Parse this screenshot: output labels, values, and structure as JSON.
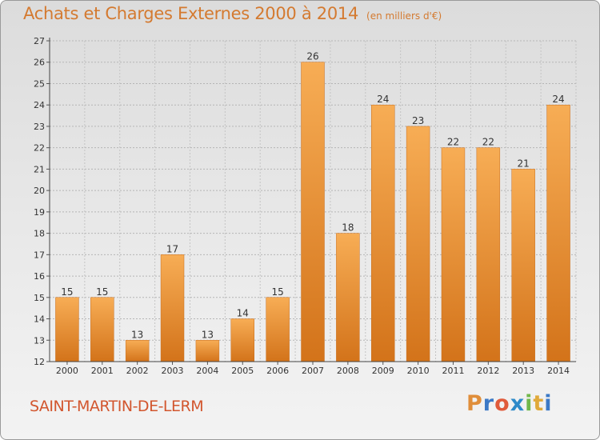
{
  "title": "Achats et Charges Externes 2000 à 2014",
  "subtitle": "(en milliers d'€)",
  "commune": "SAINT-MARTIN-DE-LERM",
  "logo_text": "Proxiti",
  "colors": {
    "title": "#d47a30",
    "commune": "#d2562e",
    "bar_light": "#f6a94f",
    "bar_dark": "#d67a1e"
  },
  "chart_data": {
    "type": "bar",
    "title": "Achats et Charges Externes 2000 à 2014",
    "subtitle": "(en milliers d'€)",
    "categories": [
      "2000",
      "2001",
      "2002",
      "2003",
      "2004",
      "2005",
      "2006",
      "2007",
      "2008",
      "2009",
      "2010",
      "2011",
      "2012",
      "2013",
      "2014"
    ],
    "values": [
      15,
      15,
      13,
      17,
      13,
      14,
      15,
      26,
      18,
      24,
      23,
      22,
      22,
      21,
      24
    ],
    "ylim": [
      12,
      27
    ],
    "yticks": [
      12,
      13,
      14,
      15,
      16,
      17,
      18,
      19,
      20,
      21,
      22,
      23,
      24,
      25,
      26,
      27
    ],
    "grid": true
  }
}
